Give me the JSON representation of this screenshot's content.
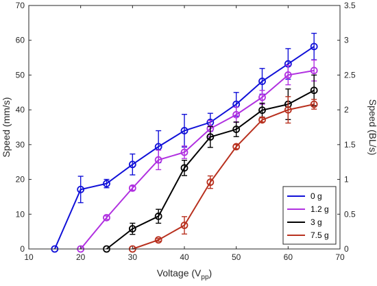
{
  "chart_data": {
    "type": "line",
    "xlabel": "Voltage (V",
    "xlabel_sub": "pp",
    "xlabel_close": ")",
    "ylabel": "Speed (mm/s)",
    "ylabel_right": "Speed (BL/s)",
    "xlim": [
      10,
      70
    ],
    "ylim": [
      0,
      70
    ],
    "ylim_right": [
      0,
      3.5
    ],
    "x_ticks": [
      "10",
      "20",
      "30",
      "40",
      "50",
      "60",
      "70"
    ],
    "y_ticks": [
      "0",
      "10",
      "20",
      "30",
      "40",
      "50",
      "60",
      "70"
    ],
    "y_ticks_right": [
      "0",
      "0.5",
      "1",
      "1.5",
      "2",
      "2.5",
      "3",
      "3.5"
    ],
    "grid": false,
    "legend_position": "bottom-right",
    "series": [
      {
        "name": "0 g",
        "color": "#1010d8",
        "x": [
          15,
          20,
          25,
          30,
          35,
          40,
          45,
          50,
          55,
          60,
          65
        ],
        "y": [
          0,
          17.1,
          18.8,
          24.3,
          29.4,
          34.0,
          36.4,
          41.6,
          48.2,
          53.2,
          58.2
        ],
        "err": [
          0,
          3.8,
          1.2,
          3.0,
          4.6,
          4.7,
          2.6,
          3.4,
          3.7,
          4.4,
          3.8
        ]
      },
      {
        "name": "1.2 g",
        "color": "#b030e0",
        "x": [
          20,
          25,
          30,
          35,
          40,
          45,
          50,
          55,
          60,
          65
        ],
        "y": [
          0,
          9.0,
          17.5,
          25.6,
          27.8,
          34.6,
          38.6,
          43.6,
          50.0,
          51.3
        ],
        "err": [
          0,
          0.5,
          0.6,
          2.8,
          1.8,
          2.3,
          2.2,
          2.0,
          2.8,
          3.0
        ]
      },
      {
        "name": "3 g",
        "color": "#000000",
        "x": [
          25,
          30,
          35,
          40,
          45,
          50,
          55,
          60,
          65
        ],
        "y": [
          0,
          5.8,
          9.4,
          23.3,
          32.2,
          34.4,
          39.9,
          41.6,
          45.6
        ],
        "err": [
          0,
          1.6,
          2.0,
          2.2,
          3.0,
          2.1,
          2.0,
          4.4,
          4.4
        ]
      },
      {
        "name": "7.5 g",
        "color": "#b8301e",
        "x": [
          30,
          35,
          40,
          45,
          50,
          55,
          60,
          65
        ],
        "y": [
          0,
          2.6,
          6.8,
          19.2,
          29.4,
          37.1,
          40.0,
          41.6
        ],
        "err": [
          0,
          0.4,
          2.5,
          1.8,
          0.6,
          0.6,
          3.8,
          1.4
        ]
      }
    ]
  }
}
